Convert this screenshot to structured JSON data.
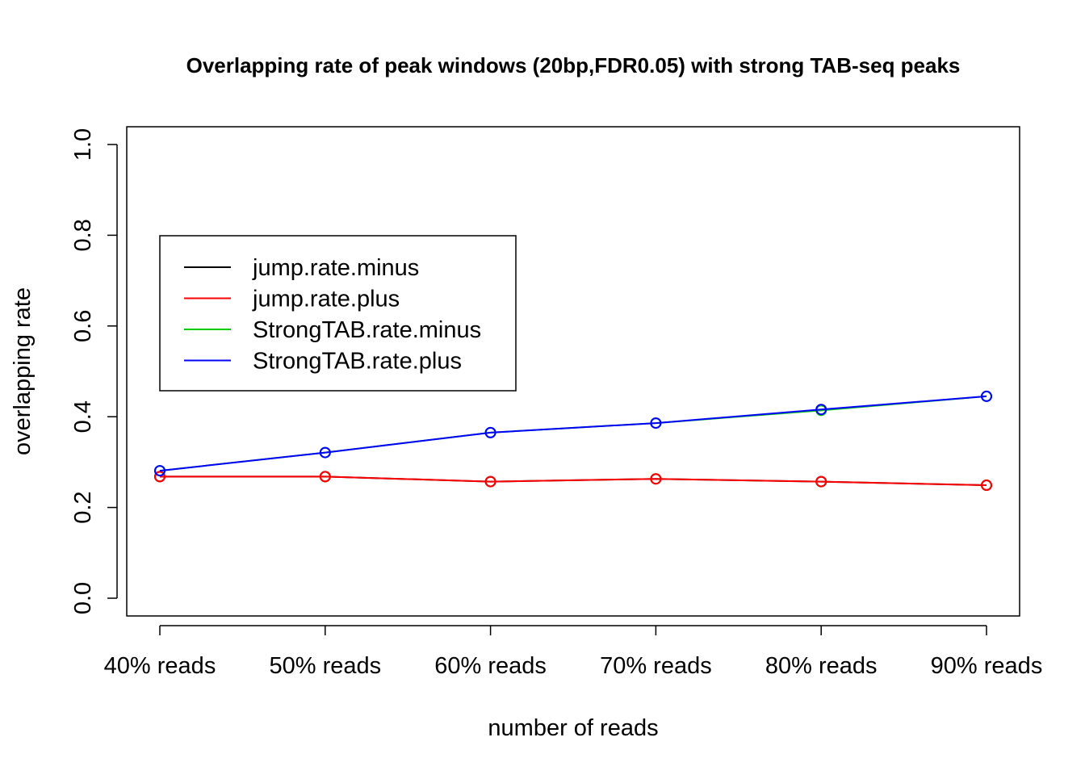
{
  "chart_data": {
    "type": "line",
    "title": "Overlapping rate of peak windows (20bp,FDR0.05) with strong TAB-seq peaks",
    "xlabel": "number of reads",
    "ylabel": "overlapping rate",
    "categories": [
      "40% reads",
      "50% reads",
      "60% reads",
      "70% reads",
      "80% reads",
      "90% reads"
    ],
    "ylim": [
      0.0,
      1.0
    ],
    "yticks": [
      0.0,
      0.2,
      0.4,
      0.6,
      0.8,
      1.0
    ],
    "ytick_labels": [
      "0.0",
      "0.2",
      "0.4",
      "0.6",
      "0.8",
      "1.0"
    ],
    "grid": false,
    "legend_position": "top-left",
    "markers": "open-circle",
    "series": [
      {
        "name": "jump.rate.minus",
        "color": "#000000",
        "values": [
          0.268,
          0.268,
          0.257,
          0.263,
          0.257,
          0.249
        ]
      },
      {
        "name": "jump.rate.plus",
        "color": "#ff0000",
        "values": [
          0.268,
          0.268,
          0.257,
          0.263,
          0.257,
          0.249
        ]
      },
      {
        "name": "StrongTAB.rate.minus",
        "color": "#00cd00",
        "values": [
          0.281,
          0.321,
          0.365,
          0.386,
          0.414,
          0.445
        ]
      },
      {
        "name": "StrongTAB.rate.plus",
        "color": "#0000ff",
        "values": [
          0.281,
          0.321,
          0.365,
          0.386,
          0.416,
          0.445
        ]
      }
    ]
  }
}
